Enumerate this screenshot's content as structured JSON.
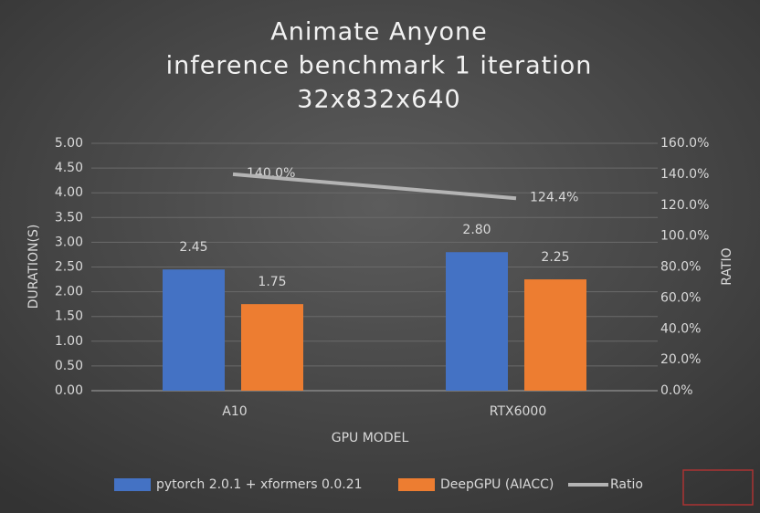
{
  "chart_data": {
    "type": "bar",
    "title_lines": [
      "Animate Anyone",
      "inference benchmark 1 iteration",
      "32x832x640"
    ],
    "x_label": "GPU MODEL",
    "y_label": "DURATION(S)",
    "y2_label": "RATIO",
    "categories": [
      "A10",
      "RTX6000"
    ],
    "series": [
      {
        "name": "pytorch 2.0.1 + xformers 0.0.21",
        "color": "#4472c4",
        "values": [
          2.45,
          2.8
        ],
        "value_labels": [
          "2.45",
          "2.80"
        ]
      },
      {
        "name": "DeepGPU (AIACC)",
        "color": "#ed7d31",
        "values": [
          1.75,
          2.25
        ],
        "value_labels": [
          "1.75",
          "2.25"
        ]
      },
      {
        "name": "Ratio",
        "type": "line",
        "axis": "y2",
        "color": "#b4b4b4",
        "values": [
          140.0,
          124.4
        ],
        "value_labels": [
          "140.0%",
          "124.4%"
        ]
      }
    ],
    "ylim": [
      0,
      5
    ],
    "yticks": [
      {
        "value": 0,
        "label": "0.00"
      },
      {
        "value": 0.5,
        "label": "0.50"
      },
      {
        "value": 1,
        "label": "1.00"
      },
      {
        "value": 1.5,
        "label": "1.50"
      },
      {
        "value": 2,
        "label": "2.00"
      },
      {
        "value": 2.5,
        "label": "2.50"
      },
      {
        "value": 3,
        "label": "3.00"
      },
      {
        "value": 3.5,
        "label": "3.50"
      },
      {
        "value": 4,
        "label": "4.00"
      },
      {
        "value": 4.5,
        "label": "4.50"
      },
      {
        "value": 5,
        "label": "5.00"
      }
    ],
    "y2lim": [
      0,
      160
    ],
    "y2ticks": [
      {
        "value": 0,
        "label": "0.0%"
      },
      {
        "value": 20,
        "label": "20.0%"
      },
      {
        "value": 40,
        "label": "40.0%"
      },
      {
        "value": 60,
        "label": "60.0%"
      },
      {
        "value": 80,
        "label": "80.0%"
      },
      {
        "value": 100,
        "label": "100.0%"
      },
      {
        "value": 120,
        "label": "120.0%"
      },
      {
        "value": 140,
        "label": "140.0%"
      },
      {
        "value": 160,
        "label": "160.0%"
      }
    ],
    "grid": true,
    "legend": "bottom"
  }
}
